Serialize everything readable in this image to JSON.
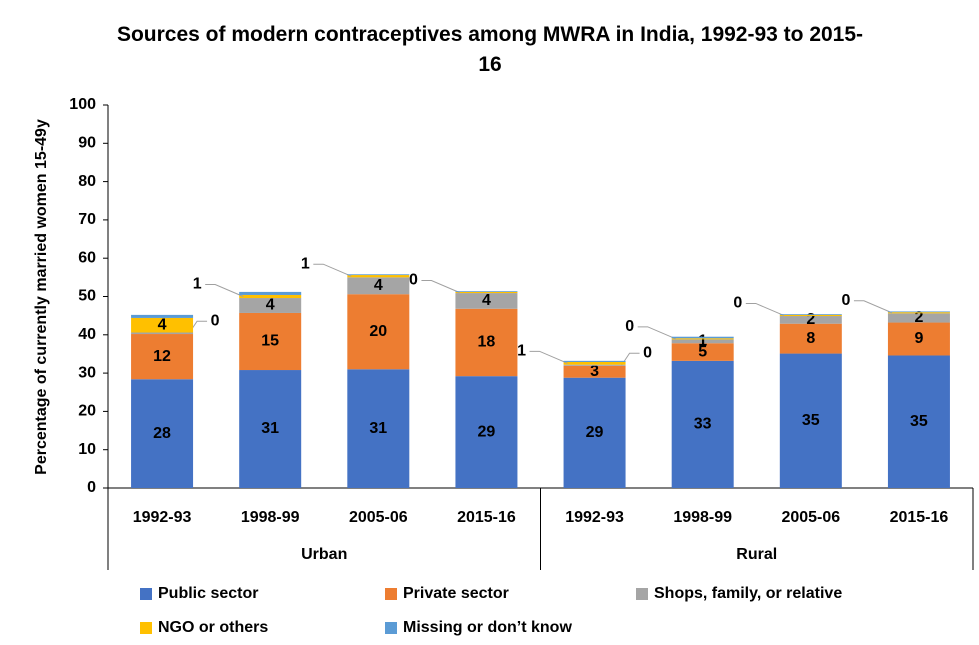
{
  "chart_data": {
    "type": "stacked_bar",
    "title": "Sources of modern contraceptives among MWRA  in India, 1992-93 to 2015-16",
    "y_label": "Percentage of currently married women 15-49y",
    "groups": [
      {
        "name": "Urban",
        "categories": [
          "1992-93",
          "1998-99",
          "2005-06",
          "2015-16"
        ]
      },
      {
        "name": "Rural",
        "categories": [
          "1992-93",
          "1998-99",
          "2005-06",
          "2015-16"
        ]
      }
    ],
    "series": [
      {
        "name": "Public sector",
        "color": "#4472c4",
        "values": [
          28.4,
          30.8,
          31.0,
          29.2,
          28.8,
          33.2,
          35.1,
          34.6
        ],
        "value_labels": [
          "28",
          "31",
          "31",
          "29",
          "29",
          "33",
          "35",
          "35"
        ]
      },
      {
        "name": "Private sector",
        "color": "#ed7d31",
        "values": [
          11.8,
          14.9,
          19.6,
          17.6,
          3.1,
          4.6,
          7.8,
          8.6
        ],
        "value_labels": [
          "12",
          "15",
          "20",
          "18",
          "3",
          "5",
          "8",
          "9"
        ]
      },
      {
        "name": "Shops, family, or relative",
        "color": "#a5a5a5",
        "values": [
          0.4,
          3.9,
          4.4,
          4.1,
          0.3,
          1.0,
          2.0,
          2.4
        ],
        "value_labels": [
          "0",
          "4",
          "4",
          "4",
          "0",
          "1",
          "2",
          "2"
        ]
      },
      {
        "name": "NGO or others",
        "color": "#ffc000",
        "values": [
          3.8,
          0.8,
          0.6,
          0.3,
          0.7,
          0.3,
          0.3,
          0.3
        ],
        "value_labels": [
          "4",
          "1",
          "1",
          "0",
          "1",
          "0",
          "0",
          "0"
        ]
      },
      {
        "name": "Missing or don’t know",
        "color": "#5b9bd5",
        "values": [
          0.8,
          0.8,
          0.2,
          0.2,
          0.3,
          0.4,
          0.2,
          0.2
        ],
        "value_labels": [
          null,
          null,
          null,
          null,
          null,
          null,
          null,
          null
        ]
      }
    ],
    "ylim": [
      0,
      100
    ],
    "yticks": [
      0,
      10,
      20,
      30,
      40,
      50,
      60,
      70,
      80,
      90,
      100
    ],
    "grid": false
  }
}
